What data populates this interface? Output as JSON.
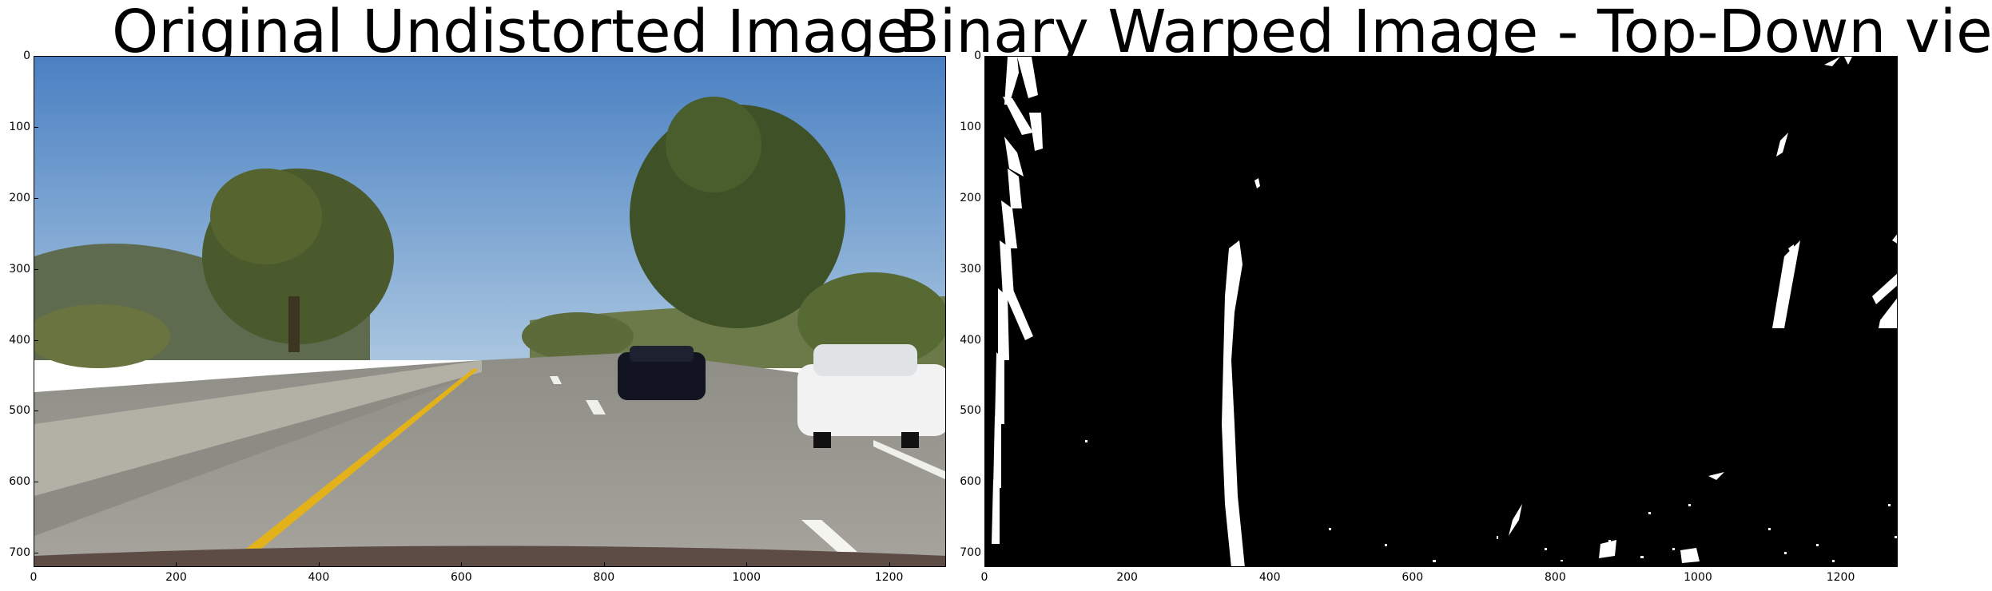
{
  "figures": [
    {
      "title": "Original Undistorted Image",
      "x_ticks": [
        "0",
        "200",
        "400",
        "600",
        "800",
        "1000",
        "1200"
      ],
      "y_ticks": [
        "0",
        "100",
        "200",
        "300",
        "400",
        "500",
        "600",
        "700"
      ]
    },
    {
      "title": "Binary Warped Image - Top-Down view",
      "x_ticks": [
        "0",
        "200",
        "400",
        "600",
        "800",
        "1000",
        "1200"
      ],
      "y_ticks": [
        "0",
        "100",
        "200",
        "300",
        "400",
        "500",
        "600",
        "700"
      ]
    }
  ],
  "image_width": 1280,
  "image_height": 720,
  "x_tick_values": [
    0,
    200,
    400,
    600,
    800,
    1000,
    1200
  ],
  "y_tick_values": [
    0,
    100,
    200,
    300,
    400,
    500,
    600,
    700
  ],
  "colors": {
    "sky": "#5b8ec4",
    "road": "#9a9a92",
    "lane_yellow": "#e3b21b",
    "binary_bg": "#000000",
    "binary_fg": "#ffffff"
  }
}
